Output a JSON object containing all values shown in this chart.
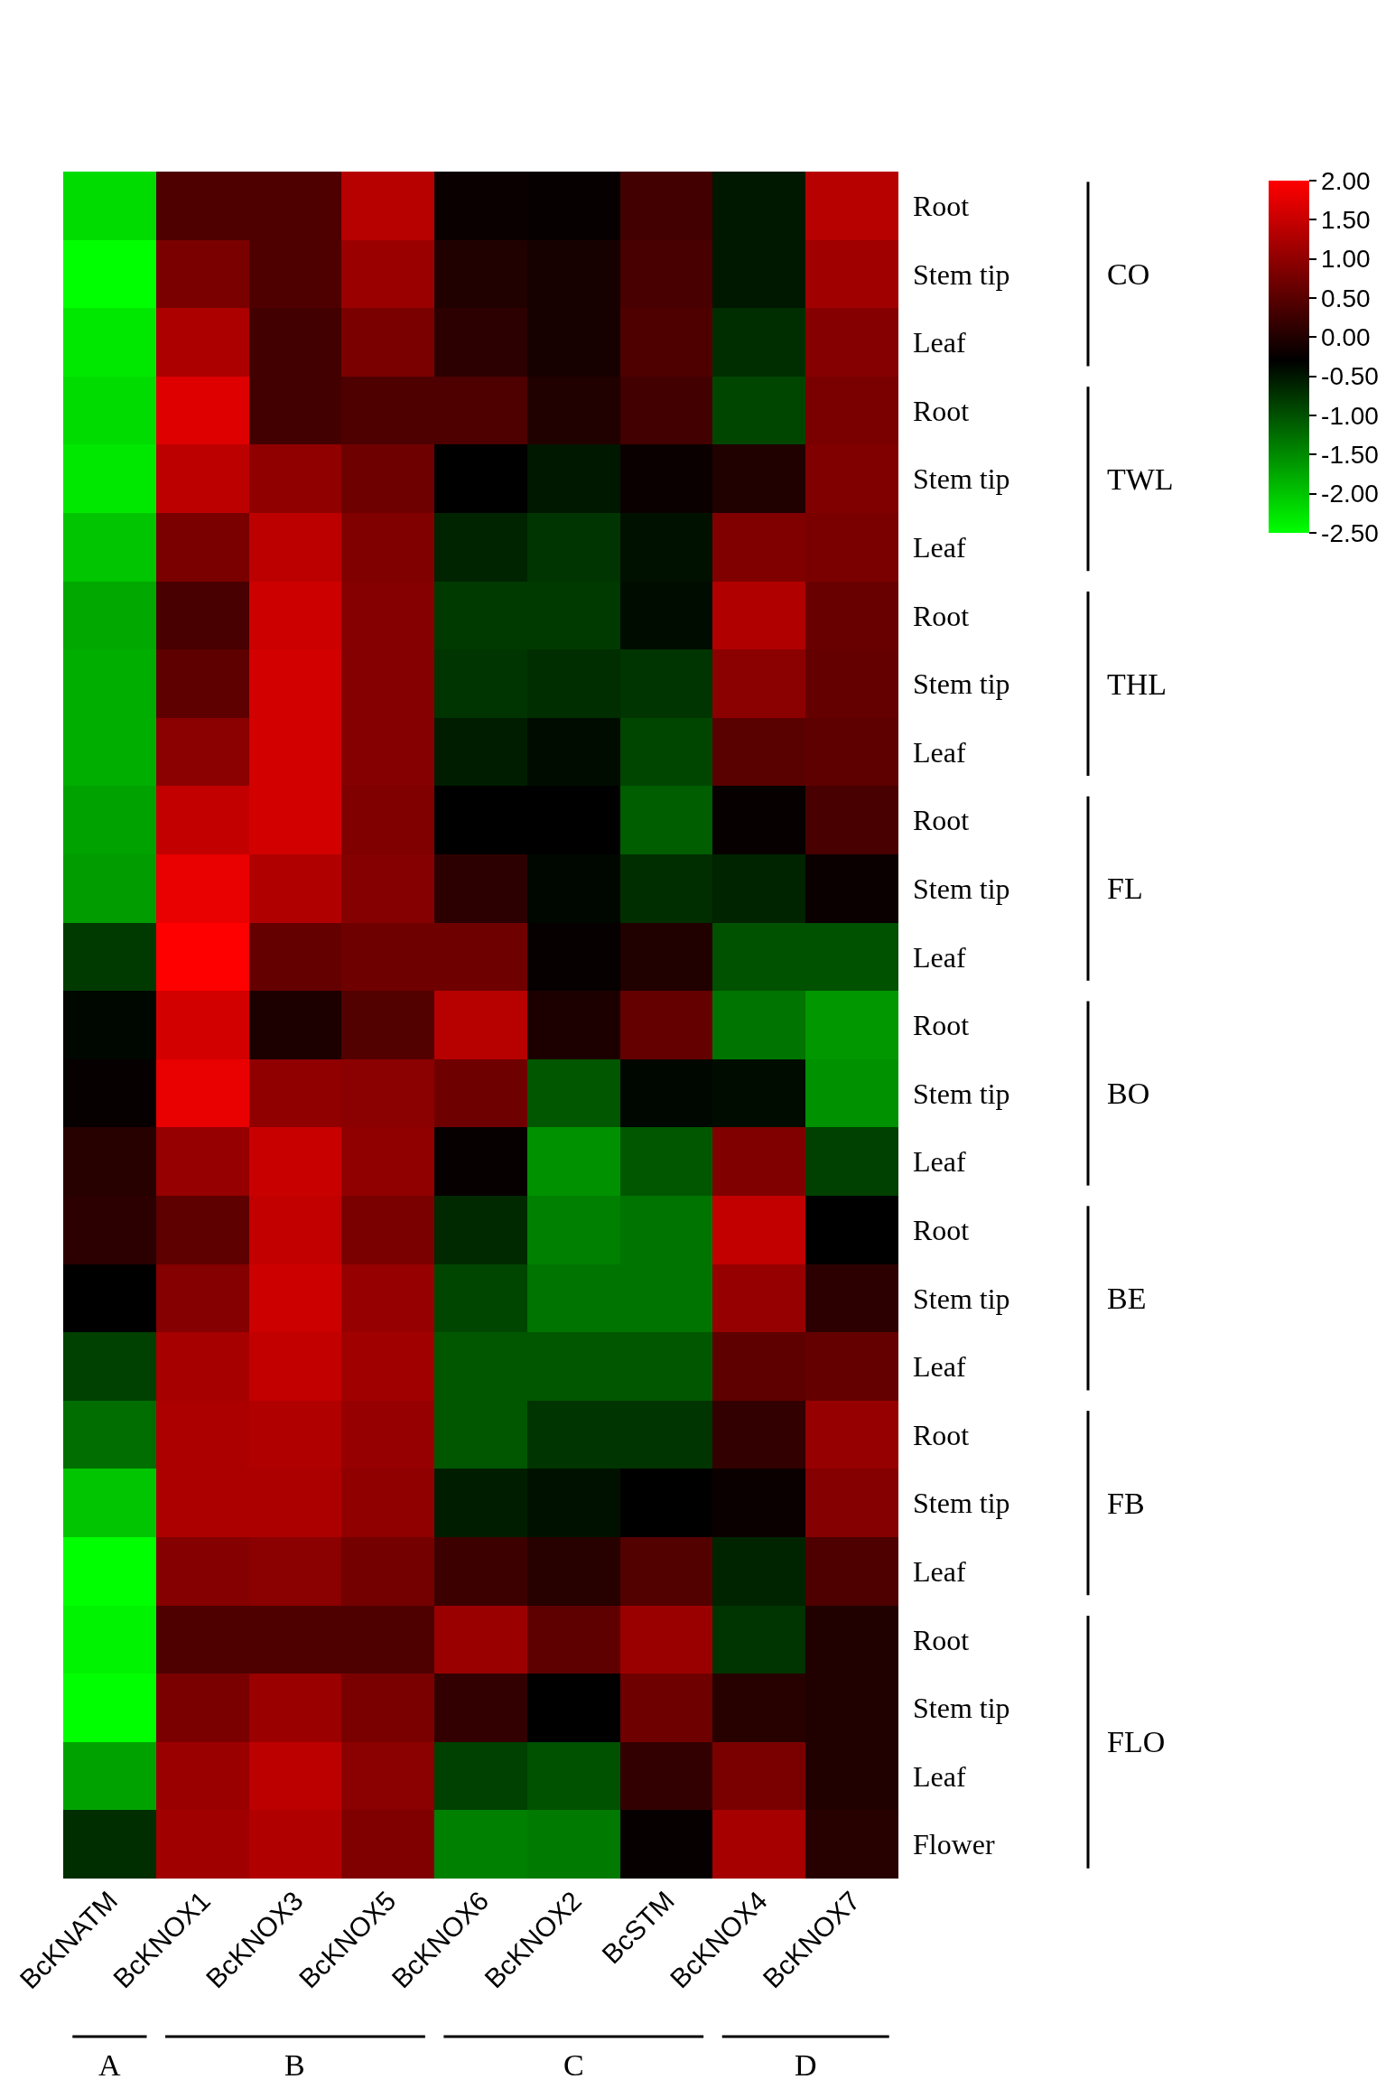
{
  "chart_data": {
    "type": "heatmap",
    "categories": [
      "BcKNATM",
      "BcKNOX1",
      "BcKNOX3",
      "BcKNOX5",
      "BcKNOX6",
      "BcKNOX2",
      "BcSTM",
      "BcKNOX4",
      "BcKNOX7"
    ],
    "y_categories": [
      "Root",
      "Stem tip",
      "Leaf",
      "Root",
      "Stem tip",
      "Leaf",
      "Root",
      "Stem tip",
      "Leaf",
      "Root",
      "Stem tip",
      "Leaf",
      "Root",
      "Stem tip",
      "Leaf",
      "Root",
      "Stem tip",
      "Leaf",
      "Root",
      "Stem tip",
      "Leaf",
      "Root",
      "Stem tip",
      "Leaf",
      "Flower"
    ],
    "cells": [
      [
        -2.2,
        0.4,
        0.4,
        1.35,
        -0.2,
        -0.25,
        0.3,
        -0.5,
        1.35
      ],
      [
        -2.5,
        0.8,
        0.4,
        1.1,
        0.0,
        -0.1,
        0.35,
        -0.5,
        1.15
      ],
      [
        -2.3,
        1.25,
        0.3,
        0.8,
        0.1,
        -0.1,
        0.4,
        -0.7,
        0.9
      ],
      [
        -2.2,
        1.7,
        0.3,
        0.4,
        0.4,
        0.0,
        0.3,
        -0.9,
        0.8
      ],
      [
        -2.3,
        1.4,
        1.0,
        0.7,
        -0.3,
        -0.5,
        -0.2,
        0.0,
        0.85
      ],
      [
        -2.0,
        0.8,
        1.4,
        0.85,
        -0.6,
        -0.75,
        -0.45,
        0.85,
        0.8
      ],
      [
        -1.75,
        0.35,
        1.55,
        0.9,
        -0.8,
        -0.8,
        -0.4,
        1.3,
        0.65
      ],
      [
        -1.8,
        0.55,
        1.6,
        0.9,
        -0.75,
        -0.7,
        -0.75,
        0.95,
        0.6
      ],
      [
        -1.8,
        0.95,
        1.6,
        0.9,
        -0.55,
        -0.4,
        -0.9,
        0.5,
        0.55
      ],
      [
        -1.7,
        1.45,
        1.6,
        0.85,
        -0.3,
        -0.3,
        -1.1,
        -0.25,
        0.35
      ],
      [
        -1.65,
        1.8,
        1.3,
        0.9,
        0.1,
        -0.35,
        -0.7,
        -0.6,
        -0.2
      ],
      [
        -0.8,
        2.0,
        0.6,
        0.7,
        0.7,
        -0.25,
        0.0,
        -1.0,
        -1.0
      ],
      [
        -0.35,
        1.6,
        -0.05,
        0.45,
        1.35,
        -0.05,
        0.6,
        -1.3,
        -1.6
      ],
      [
        -0.25,
        1.8,
        1.0,
        0.95,
        0.7,
        -1.05,
        -0.35,
        -0.4,
        -1.55
      ],
      [
        0.05,
        1.05,
        1.5,
        1.0,
        -0.25,
        -1.55,
        -1.05,
        0.85,
        -0.85
      ],
      [
        0.1,
        0.55,
        1.45,
        0.8,
        -0.65,
        -1.4,
        -1.3,
        1.45,
        -0.3
      ],
      [
        -0.3,
        0.9,
        1.55,
        1.05,
        -0.9,
        -1.3,
        -1.3,
        1.05,
        0.1
      ],
      [
        -0.85,
        1.2,
        1.45,
        1.15,
        -1.05,
        -1.05,
        -1.05,
        0.55,
        0.6
      ],
      [
        -1.25,
        1.25,
        1.3,
        1.05,
        -1.05,
        -0.75,
        -0.75,
        0.15,
        1.05
      ],
      [
        -2.0,
        1.25,
        1.25,
        1.0,
        -0.55,
        -0.45,
        -0.3,
        -0.2,
        0.9
      ],
      [
        -2.5,
        0.9,
        0.95,
        0.75,
        0.25,
        0.05,
        0.45,
        -0.6,
        0.4
      ],
      [
        -2.4,
        0.4,
        0.4,
        0.4,
        1.1,
        0.55,
        1.1,
        -0.75,
        0.0
      ],
      [
        -2.5,
        0.8,
        1.1,
        0.8,
        0.15,
        -0.3,
        0.7,
        0.05,
        0.0
      ],
      [
        -1.7,
        1.1,
        1.4,
        0.95,
        -0.85,
        -1.0,
        0.15,
        0.8,
        0.0
      ],
      [
        -0.7,
        1.15,
        1.3,
        0.85,
        -1.4,
        -1.35,
        -0.25,
        1.2,
        0.05
      ]
    ],
    "colors": [
      "#00ff00",
      "#000000",
      "#ff0000"
    ],
    "clim": [
      -2.5,
      2.0
    ],
    "cticks": [
      {
        "value": 2.0,
        "label": "2.00"
      },
      {
        "value": 1.5,
        "label": "1.50"
      },
      {
        "value": 1.0,
        "label": "1.00"
      },
      {
        "value": 0.5,
        "label": "0.50"
      },
      {
        "value": 0.0,
        "label": "0.00"
      },
      {
        "value": -0.5,
        "label": "-0.50"
      },
      {
        "value": -1.0,
        "label": "-1.00"
      },
      {
        "value": -1.5,
        "label": "-1.50"
      },
      {
        "value": -2.0,
        "label": "-2.00"
      },
      {
        "value": -2.5,
        "label": "-2.50"
      }
    ],
    "annotations": [
      "CO",
      "TWL",
      "THL",
      "FL",
      "BO",
      "BE",
      "FB",
      "FLO",
      "A",
      "B",
      "C",
      "D"
    ]
  }
}
